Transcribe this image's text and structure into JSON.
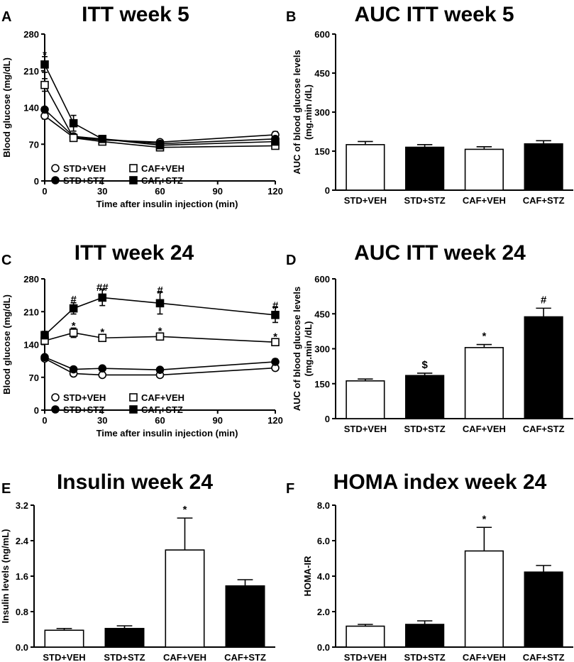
{
  "figure": {
    "panels": [
      {
        "letter": "A",
        "title": "ITT week 5"
      },
      {
        "letter": "B",
        "title": "AUC ITT week 5"
      },
      {
        "letter": "C",
        "title": "ITT week 24"
      },
      {
        "letter": "D",
        "title": "AUC ITT week 24"
      },
      {
        "letter": "E",
        "title": "Insulin week 24"
      },
      {
        "letter": "F",
        "title": "HOMA index week 24"
      }
    ]
  },
  "chart_data": [
    {
      "id": "A",
      "type": "line",
      "title": "ITT week 5",
      "xlabel": "Time after insulin injection (min)",
      "ylabel": "Blood glucose (mg/dL)",
      "xlim": [
        0,
        120
      ],
      "xticks": [
        0,
        30,
        60,
        90,
        120
      ],
      "ylim": [
        0,
        280
      ],
      "yticks": [
        0,
        70,
        140,
        210,
        280
      ],
      "x": [
        0,
        15,
        30,
        60,
        120
      ],
      "series": [
        {
          "name": "STD+VEH",
          "marker": "open-circle",
          "values": [
            124,
            83,
            78,
            74,
            88
          ],
          "errors": [
            6,
            5,
            3,
            4,
            6
          ]
        },
        {
          "name": "STD+STZ",
          "marker": "filled-circle",
          "values": [
            136,
            85,
            80,
            71,
            80
          ],
          "errors": [
            0,
            5,
            3,
            3,
            5
          ]
        },
        {
          "name": "CAF+VEH",
          "marker": "open-square",
          "values": [
            183,
            82,
            75,
            64,
            67
          ],
          "errors": [
            12,
            5,
            3,
            3,
            4
          ]
        },
        {
          "name": "CAF+STZ",
          "marker": "filled-square",
          "values": [
            222,
            110,
            80,
            68,
            75
          ],
          "errors": [
            15,
            15,
            4,
            4,
            6
          ]
        }
      ],
      "legend": {
        "position": "bottom-left",
        "items": [
          "STD+VEH",
          "CAF+VEH",
          "STD+STZ",
          "CAF+STZ"
        ]
      },
      "annotations": [
        {
          "text": "*",
          "x": 0,
          "y": 242
        }
      ]
    },
    {
      "id": "B",
      "type": "bar",
      "title": "AUC ITT week 5",
      "ylabel": "AUC of blood glucose levels (mg.min /dL)",
      "ylabel_lines": [
        "AUC of blood glucose levels",
        "(mg.min /dL)"
      ],
      "ylim": [
        0,
        600
      ],
      "yticks": [
        0,
        150,
        300,
        450,
        600
      ],
      "categories": [
        "STD+VEH",
        "STD+STZ",
        "CAF+VEH",
        "CAF+STZ"
      ],
      "fills": [
        "white",
        "black",
        "white",
        "black"
      ],
      "values": [
        175,
        165,
        157,
        178
      ],
      "errors": [
        12,
        10,
        10,
        12
      ],
      "annotations": []
    },
    {
      "id": "C",
      "type": "line",
      "title": "ITT week 24",
      "xlabel": "Time after insulin injection (min)",
      "ylabel": "Blood glucose (mg/dL)",
      "xlim": [
        0,
        120
      ],
      "xticks": [
        0,
        30,
        60,
        90,
        120
      ],
      "ylim": [
        0,
        280
      ],
      "yticks": [
        0,
        70,
        140,
        210,
        280
      ],
      "x": [
        0,
        15,
        30,
        60,
        120
      ],
      "series": [
        {
          "name": "STD+VEH",
          "marker": "open-circle",
          "values": [
            110,
            78,
            75,
            75,
            90
          ],
          "errors": [
            3,
            3,
            3,
            3,
            4
          ]
        },
        {
          "name": "STD+STZ",
          "marker": "filled-circle",
          "values": [
            113,
            87,
            89,
            86,
            103
          ],
          "errors": [
            3,
            3,
            3,
            3,
            6
          ]
        },
        {
          "name": "CAF+VEH",
          "marker": "open-square",
          "values": [
            148,
            165,
            154,
            157,
            145
          ],
          "errors": [
            5,
            10,
            6,
            6,
            5
          ]
        },
        {
          "name": "CAF+STZ",
          "marker": "filled-square",
          "values": [
            160,
            217,
            240,
            228,
            203
          ],
          "errors": [
            8,
            12,
            17,
            23,
            16
          ]
        }
      ],
      "legend": {
        "position": "bottom-left",
        "items": [
          "STD+VEH",
          "CAF+VEH",
          "STD+STZ",
          "CAF+STZ"
        ]
      },
      "annotations": [
        {
          "text": "#",
          "x": 15,
          "y": 238
        },
        {
          "text": "*",
          "x": 15,
          "y": 182
        },
        {
          "text": "##",
          "x": 30,
          "y": 263
        },
        {
          "text": "*",
          "x": 30,
          "y": 168
        },
        {
          "text": "#",
          "x": 60,
          "y": 257
        },
        {
          "text": "*",
          "x": 60,
          "y": 170
        },
        {
          "text": "#",
          "x": 120,
          "y": 225
        },
        {
          "text": "*",
          "x": 120,
          "y": 158
        }
      ]
    },
    {
      "id": "D",
      "type": "bar",
      "title": "AUC ITT week 24",
      "ylabel": "AUC of blood glucose levels (mg.min /dL)",
      "ylabel_lines": [
        "AUC of blood glucose levels",
        "(mg.min /dL)"
      ],
      "ylim": [
        0,
        600
      ],
      "yticks": [
        0,
        150,
        300,
        450,
        600
      ],
      "categories": [
        "STD+VEH",
        "STD+STZ",
        "CAF+VEH",
        "CAF+STZ"
      ],
      "fills": [
        "white",
        "black",
        "white",
        "black"
      ],
      "values": [
        162,
        185,
        305,
        437
      ],
      "errors": [
        8,
        10,
        13,
        37
      ],
      "annotations": [
        {
          "text": "$",
          "index": 1
        },
        {
          "text": "*",
          "index": 2
        },
        {
          "text": "#",
          "index": 3
        }
      ]
    },
    {
      "id": "E",
      "type": "bar",
      "title": "Insulin week 24",
      "ylabel": "Insulin levels (ng/mL)",
      "ylabel_lines": [
        "Insulin levels (ng/mL)"
      ],
      "ylim": [
        0,
        3.2
      ],
      "yticks": [
        "0.0",
        "0.8",
        "1.6",
        "2.4",
        "3.2"
      ],
      "categories": [
        "STD+VEH",
        "STD+STZ",
        "CAF+VEH",
        "CAF+STZ"
      ],
      "fills": [
        "white",
        "black",
        "white",
        "black"
      ],
      "values": [
        0.38,
        0.42,
        2.19,
        1.38
      ],
      "errors": [
        0.04,
        0.06,
        0.72,
        0.14
      ],
      "annotations": [
        {
          "text": "*",
          "index": 2
        }
      ]
    },
    {
      "id": "F",
      "type": "bar",
      "title": "HOMA index week 24",
      "ylabel": "HOMA-IR",
      "ylabel_lines": [
        "HOMA-IR"
      ],
      "ylim": [
        0,
        8.0
      ],
      "yticks": [
        "0.0",
        "2.0",
        "4.0",
        "6.0",
        "8.0"
      ],
      "categories": [
        "STD+VEH",
        "STD+STZ",
        "CAF+VEH",
        "CAF+STZ"
      ],
      "fills": [
        "white",
        "black",
        "white",
        "black"
      ],
      "values": [
        1.18,
        1.28,
        5.42,
        4.23
      ],
      "errors": [
        0.1,
        0.2,
        1.33,
        0.37
      ],
      "annotations": [
        {
          "text": "*",
          "index": 2
        }
      ]
    }
  ]
}
